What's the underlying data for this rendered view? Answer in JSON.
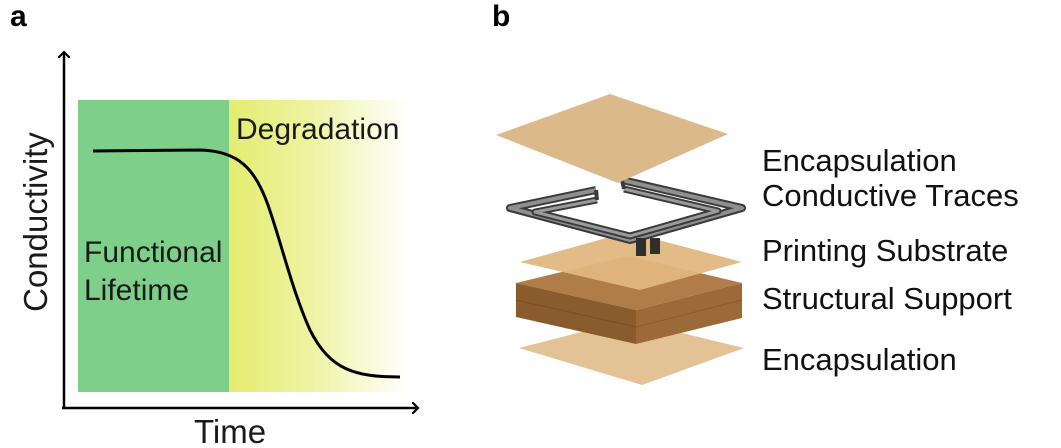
{
  "panel_a": {
    "letter": "a",
    "x_axis_label": "Time",
    "y_axis_label": "Conductivity",
    "region_functional_line1": "Functional",
    "region_functional_line2": "Lifetime",
    "region_degradation": "Degradation",
    "colors": {
      "functional": "#7dcf8a",
      "degradation_start": "#e4ec70",
      "degradation_end": "#ffffff",
      "curve": "#000000"
    }
  },
  "panel_b": {
    "letter": "b",
    "layers": [
      {
        "label": "Encapsulation",
        "color": "#dcb98a"
      },
      {
        "label": "Conductive Traces",
        "color": "#555555"
      },
      {
        "label": "Printing Substrate",
        "color": "#e0b77f"
      },
      {
        "label": "Structural Support",
        "color": "#a06e3c"
      },
      {
        "label": "Encapsulation",
        "color": "#e3c396"
      }
    ]
  }
}
